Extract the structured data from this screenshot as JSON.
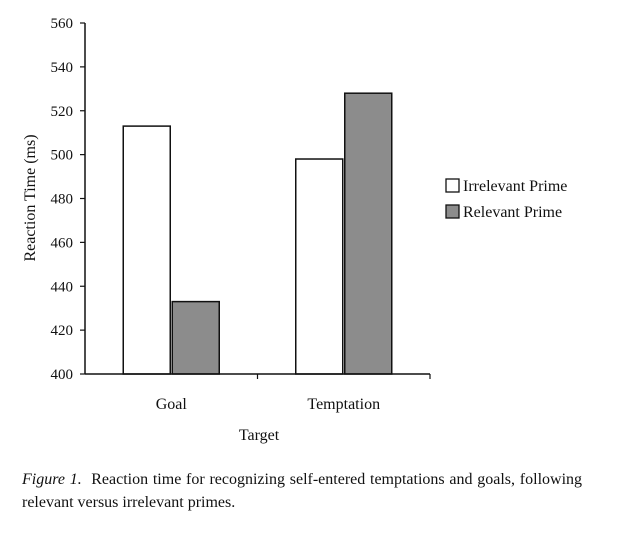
{
  "chart_data": {
    "type": "bar",
    "categories": [
      "Goal",
      "Temptation"
    ],
    "series": [
      {
        "name": "Irrelevant Prime",
        "color": "#ffffff",
        "values": [
          513,
          498
        ]
      },
      {
        "name": "Relevant Prime",
        "color": "#8c8c8c",
        "values": [
          433,
          528
        ]
      }
    ],
    "xlabel": "Target",
    "ylabel": "Reaction Time (ms)",
    "ylim": [
      400,
      560
    ],
    "yticks": [
      400,
      420,
      440,
      460,
      480,
      500,
      520,
      540,
      560
    ],
    "grid": false,
    "legend_position": "right"
  },
  "caption": {
    "figure_label": "Figure 1.",
    "text": "Reaction time for recognizing self-entered temptations and goals, following relevant versus irrelevant primes."
  }
}
